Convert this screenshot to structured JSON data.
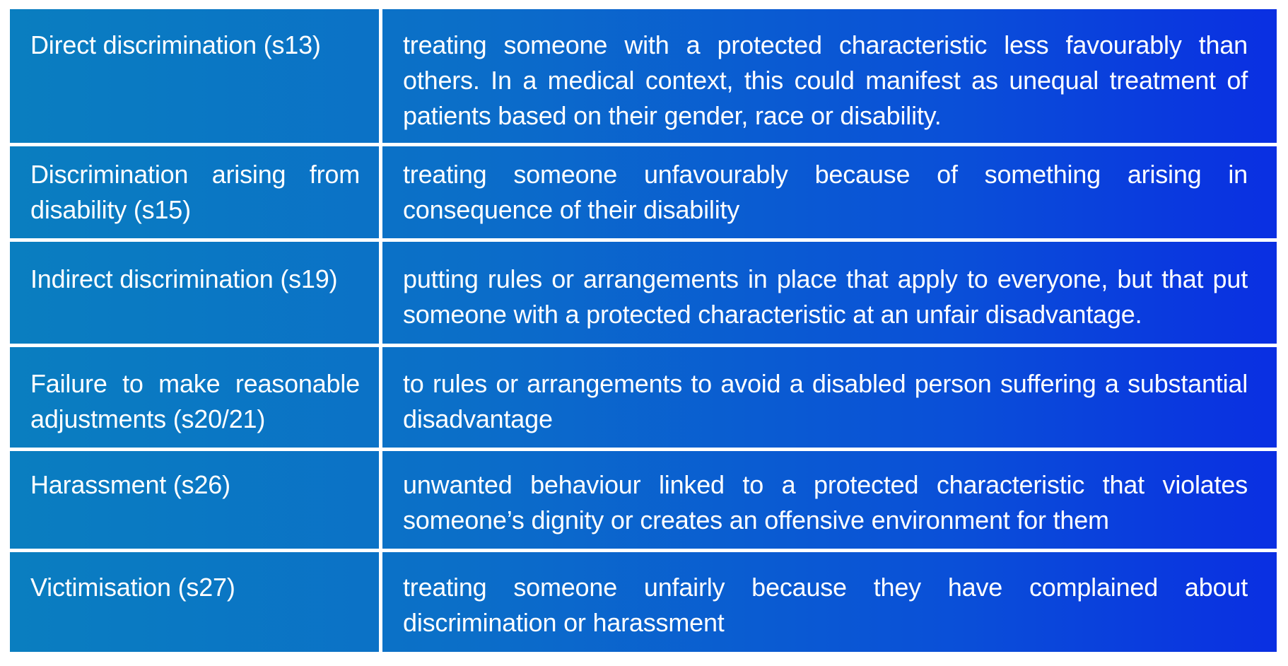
{
  "table": {
    "rows": [
      {
        "term": "Direct discrimination (s13)",
        "definition": "treating someone with a protected characteristic less favourably than others. In a medical context, this could manifest as unequal treatment of patients based on their gender, race or disability."
      },
      {
        "term": "Discrimination arising from disability (s15)",
        "definition": "treating someone unfavourably because of something arising in consequence of their disability"
      },
      {
        "term": "Indirect discrimination (s19)",
        "definition": "putting rules or arrangements in place that apply to everyone, but that put someone with a protected characteristic at an unfair disadvantage."
      },
      {
        "term": "Failure to make reasonable adjustments (s20/21)",
        "definition": "to rules or arrangements to avoid a disabled person suffering a substantial disadvantage"
      },
      {
        "term": "Harassment (s26)",
        "definition": "unwanted behaviour linked to a protected characteristic that violates someone’s dignity or creates an offensive environment for them"
      },
      {
        "term": "Victimisation (s27)",
        "definition": "treating someone unfairly because they have complained about discrimination or harassment"
      }
    ]
  }
}
